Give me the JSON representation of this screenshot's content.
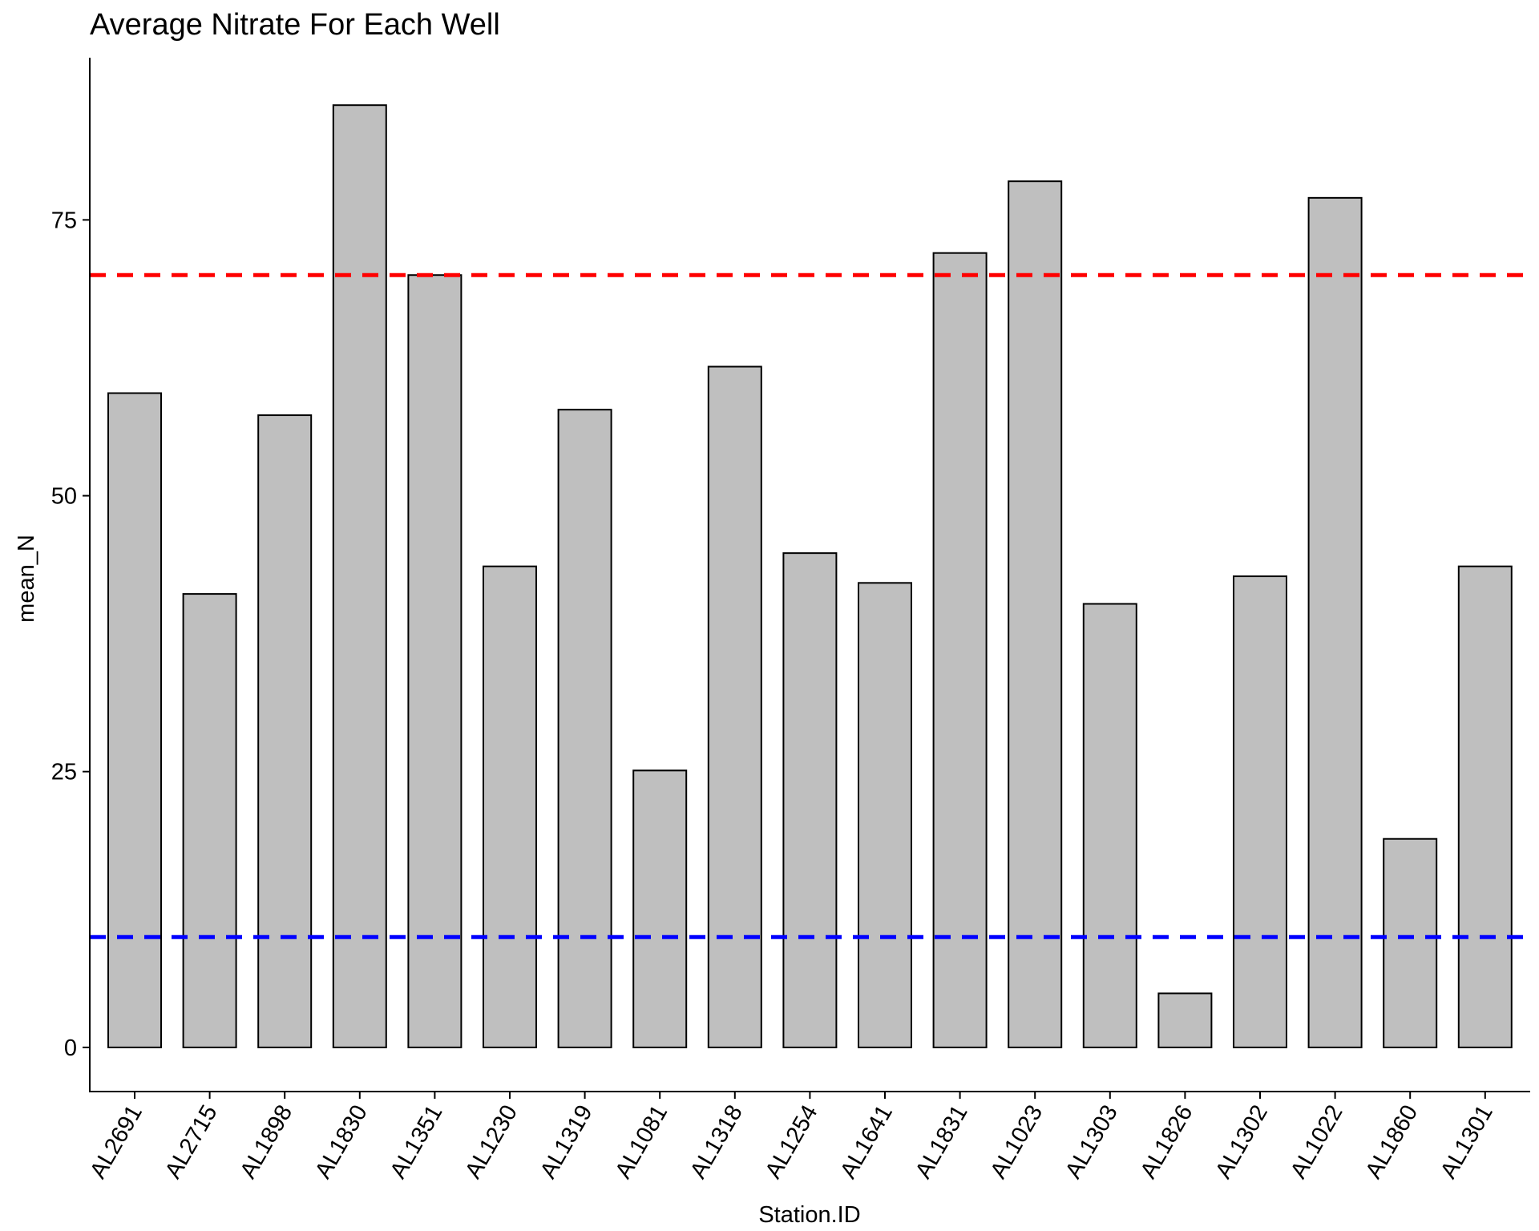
{
  "chart_data": {
    "type": "bar",
    "title": "Average Nitrate For Each Well",
    "xlabel": "Station.ID",
    "ylabel": "mean_N",
    "categories": [
      "AL2691",
      "AL2715",
      "AL1898",
      "AL1830",
      "AL1351",
      "AL1230",
      "AL1319",
      "AL1081",
      "AL1318",
      "AL1254",
      "AL1641",
      "AL1831",
      "AL1023",
      "AL1303",
      "AL1826",
      "AL1302",
      "AL1022",
      "AL1860",
      "AL1301"
    ],
    "values": [
      59.3,
      41.1,
      57.3,
      85.4,
      70.0,
      43.6,
      57.8,
      25.1,
      61.7,
      44.8,
      42.1,
      72.0,
      78.5,
      40.2,
      4.9,
      42.7,
      77.0,
      18.9,
      43.6
    ],
    "ylim": [
      -4,
      89.7
    ],
    "yticks": [
      0,
      25,
      50,
      75
    ],
    "reference_lines": [
      {
        "y": 70,
        "color": "#ff0000",
        "style": "dashed"
      },
      {
        "y": 10,
        "color": "#0000ff",
        "style": "dashed"
      }
    ],
    "bar_color": "#bfbfbf",
    "grid": false,
    "legend": "none"
  }
}
